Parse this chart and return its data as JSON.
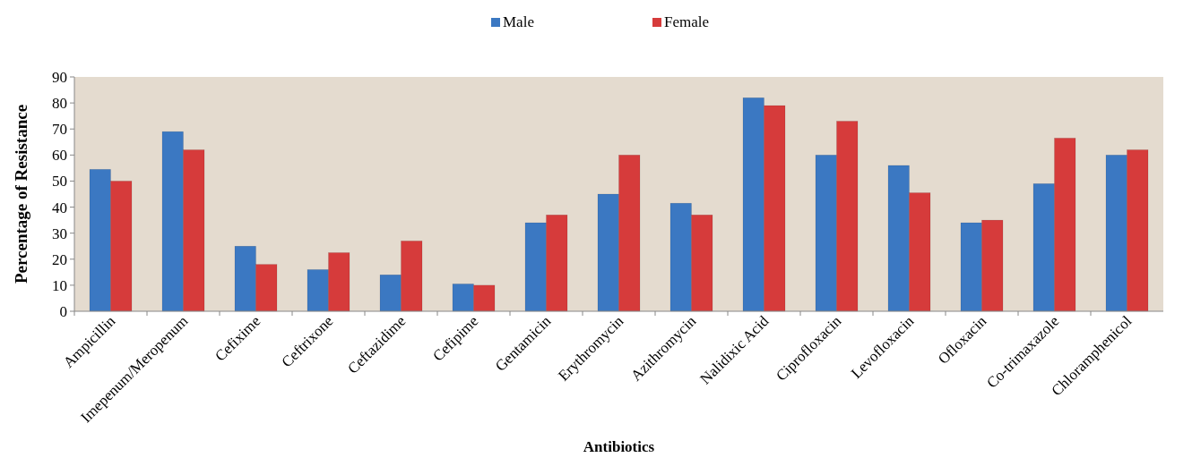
{
  "chart_data": {
    "type": "bar",
    "xlabel": "Antibiotics",
    "ylabel": "Percentage of Resistance",
    "categories": [
      "Ampicillin",
      "Imepenum/Meropenum",
      "Cefixime",
      "Ceftrixone",
      "Ceftazidime",
      "Cefipime",
      "Gentamicin",
      "Erythromycin",
      "Azithromycin",
      "Nalidixic Acid",
      "Ciprofloxacin",
      "Levofloxacin",
      "Ofloxacin",
      "Co-trimaxazole",
      "Chloramphenicol"
    ],
    "series": [
      {
        "name": "Male",
        "color": "#3b78c2",
        "values": [
          54.5,
          69,
          25,
          16,
          14,
          10.5,
          34,
          45,
          41.5,
          82,
          60,
          56,
          34,
          49,
          60
        ]
      },
      {
        "name": "Female",
        "color": "#d63b3b",
        "values": [
          50,
          62,
          18,
          22.5,
          27,
          10,
          37,
          60,
          37,
          79,
          73,
          45.5,
          35,
          66.5,
          62
        ]
      }
    ],
    "ylim": [
      0,
      90
    ],
    "yticks": [
      0,
      10,
      20,
      30,
      40,
      50,
      60,
      70,
      80,
      90
    ],
    "grid": false,
    "legend": "top"
  }
}
